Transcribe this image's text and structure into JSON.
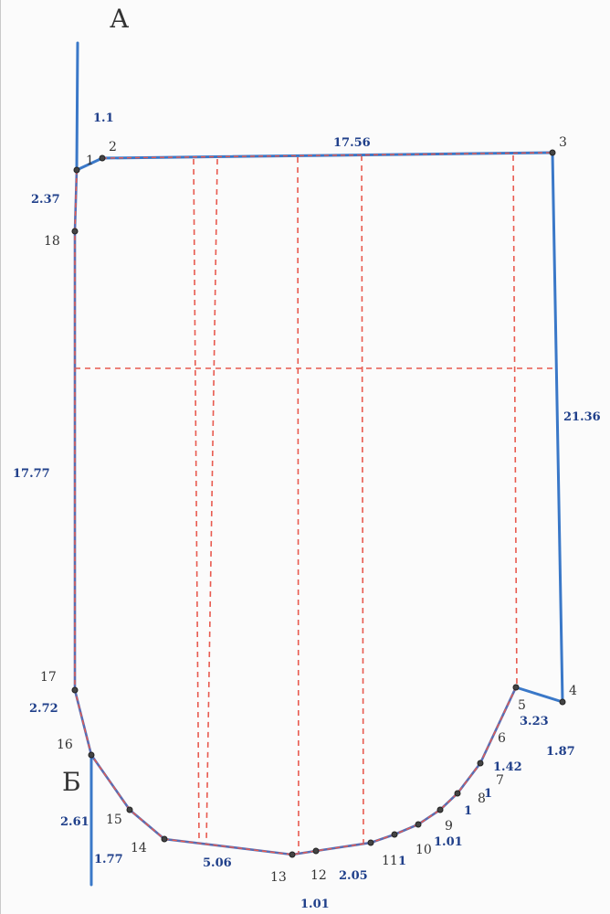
{
  "diagram": {
    "title_letter_top": "А",
    "title_letter_side": "Б",
    "colors": {
      "outline": "#3a78c8",
      "dashed": "#e85a4f",
      "points": "#444444",
      "dimension_text": "#1f3f8a"
    },
    "point_labels": [
      "1",
      "2",
      "3",
      "4",
      "5",
      "6",
      "7",
      "8",
      "9",
      "10",
      "11",
      "12",
      "13",
      "14",
      "15",
      "16",
      "17",
      "18"
    ],
    "dimension_labels": {
      "d_1_1": "1.1",
      "d_2_37": "2.37",
      "d_17_56": "17.56",
      "d_21_36": "21.36",
      "d_17_77": "17.77",
      "d_2_72": "2.72",
      "d_2_61": "2.61",
      "d_1_77": "1.77",
      "d_5_06": "5.06",
      "d_1_01_bottom": "1.01",
      "d_2_05": "2.05",
      "d_1_01_right": "1.01",
      "d_1_a": "1",
      "d_1_b": "1",
      "d_1_c": "1",
      "d_1_42": "1.42",
      "d_3_23": "3.23",
      "d_1_87": "1.87"
    }
  }
}
